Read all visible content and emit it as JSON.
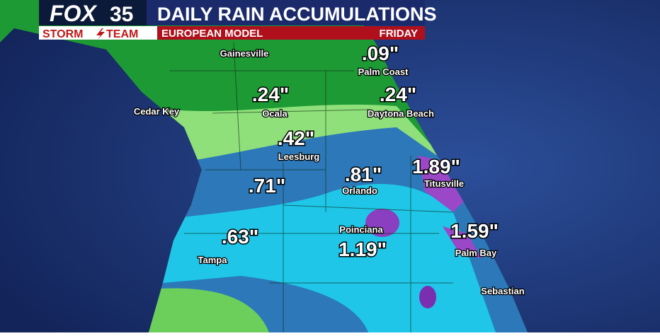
{
  "header": {
    "logo": "FOX",
    "logo_number": "35",
    "title": "DAILY RAIN ACCUMULATIONS",
    "team_left": "STORM",
    "team_right": "TEAM",
    "model": "EUROPEAN MODEL",
    "day": "FRIDAY"
  },
  "cities": [
    "Gainesville",
    "Palm Coast",
    "Cedar Key",
    "Ocala",
    "Daytona Beach",
    "Leesburg",
    "Orlando",
    "Titusville",
    "Poinciana",
    "Palm Bay",
    "Tampa",
    "Sebastian"
  ],
  "amounts": [
    ".09\"",
    ".24\"",
    ".24\"",
    ".42\"",
    ".71\"",
    ".81\"",
    "1.89\"",
    ".63\"",
    "1.19\"",
    "1.59\""
  ]
}
